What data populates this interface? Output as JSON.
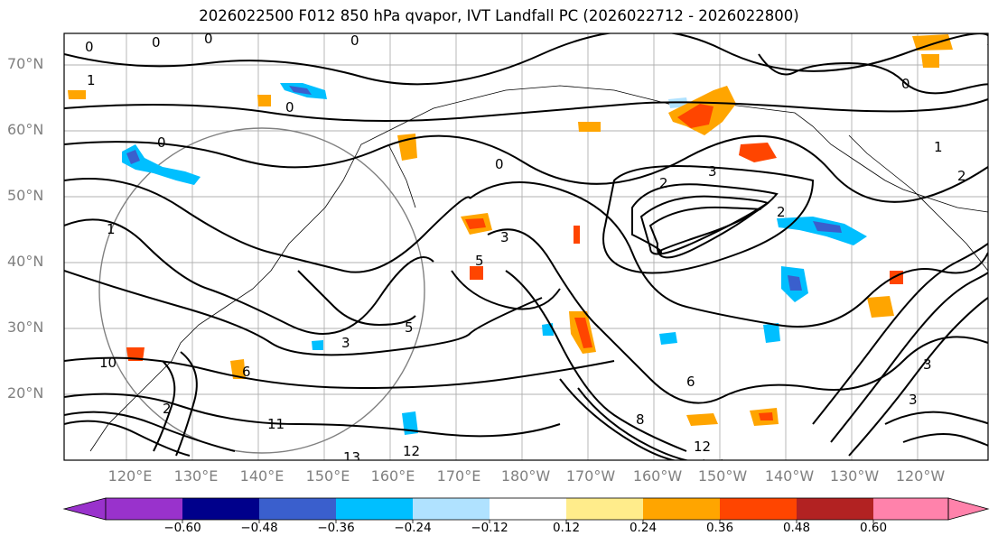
{
  "title": "2026022500 F012 850 hPa qvapor, IVT Landfall PC (2026022712 - 2026022800)",
  "lat_labels": [
    "70°N",
    "60°N",
    "50°N",
    "40°N",
    "30°N",
    "20°N"
  ],
  "lon_labels": [
    "120°E",
    "130°E",
    "140°E",
    "150°E",
    "160°E",
    "170°E",
    "180°W",
    "170°W",
    "160°W",
    "150°W",
    "140°W",
    "130°W",
    "120°W"
  ],
  "colorbar": {
    "tick_labels": [
      "−0.60",
      "−0.48",
      "−0.36",
      "−0.24",
      "−0.12",
      "0.12",
      "0.24",
      "0.36",
      "0.48",
      "0.60"
    ],
    "colors": [
      "#9932cc",
      "#00008b",
      "#3a5fcd",
      "#00bfff",
      "#b0e2ff",
      "#ffffff",
      "#ffec8b",
      "#ffa500",
      "#ff4500",
      "#b22222",
      "#ff82ab"
    ]
  },
  "contour_labels": [
    "0",
    "0",
    "0",
    "0",
    "1",
    "0",
    "0",
    "0",
    "0",
    "1",
    "1",
    "2",
    "2",
    "2",
    "3",
    "3",
    "3",
    "3",
    "3",
    "5",
    "5",
    "6",
    "6",
    "8",
    "10",
    "11",
    "12",
    "12",
    "13",
    "2"
  ]
}
